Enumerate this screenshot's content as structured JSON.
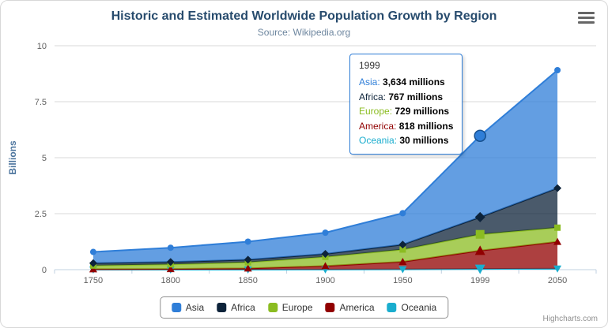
{
  "chart": {
    "title": "Historic and Estimated Worldwide Population Growth by Region",
    "subtitle": "Source: Wikipedia.org",
    "credits": "Highcharts.com",
    "menu_icon": "hamburger-icon"
  },
  "chart_data": {
    "type": "area",
    "stacking": "normal",
    "unit": "millions",
    "unit_to_billions": 0.001,
    "title": "Historic and Estimated Worldwide Population Growth by Region",
    "subtitle": "Source: Wikipedia.org",
    "categories": [
      "1750",
      "1800",
      "1850",
      "1900",
      "1950",
      "1999",
      "2050"
    ],
    "xlabel": "",
    "ylabel": "Billions",
    "ylim": [
      0,
      10
    ],
    "yticks": [
      0,
      2.5,
      5,
      7.5,
      10
    ],
    "grid": "horizontal",
    "legend_position": "bottom-center",
    "series": [
      {
        "name": "Asia",
        "color": "#2f7ed8",
        "marker": "circle",
        "values": [
          502,
          635,
          809,
          947,
          1402,
          3634,
          5268
        ]
      },
      {
        "name": "Africa",
        "color": "#0d233a",
        "marker": "diamond",
        "values": [
          106,
          107,
          111,
          133,
          221,
          767,
          1766
        ]
      },
      {
        "name": "Europe",
        "color": "#8bbc21",
        "marker": "square",
        "values": [
          163,
          203,
          276,
          408,
          547,
          729,
          628
        ]
      },
      {
        "name": "America",
        "color": "#910000",
        "marker": "triangle",
        "values": [
          18,
          31,
          54,
          156,
          339,
          818,
          1201
        ]
      },
      {
        "name": "Oceania",
        "color": "#1aadce",
        "marker": "triangle-down",
        "values": [
          2,
          2,
          2,
          6,
          13,
          30,
          46
        ]
      }
    ],
    "stack_order_bottom_to_top": [
      "Oceania",
      "America",
      "Europe",
      "Africa",
      "Asia"
    ]
  },
  "tooltip": {
    "visible": true,
    "header": "1999",
    "hover_category": "1999",
    "hover_series": "Asia",
    "rows": [
      {
        "name": "Asia",
        "color": "#2f7ed8",
        "value": "3,634 millions"
      },
      {
        "name": "Africa",
        "color": "#0d233a",
        "value": "767 millions"
      },
      {
        "name": "Europe",
        "color": "#8bbc21",
        "value": "729 millions"
      },
      {
        "name": "America",
        "color": "#910000",
        "value": "818 millions"
      },
      {
        "name": "Oceania",
        "color": "#1aadce",
        "value": "30 millions"
      }
    ]
  }
}
